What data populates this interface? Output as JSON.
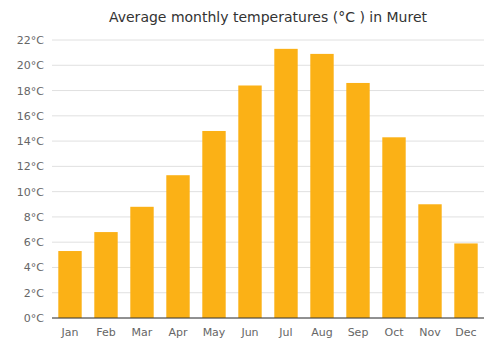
{
  "chart_data": {
    "type": "bar",
    "title": "Average monthly temperatures (°C ) in Muret",
    "categories": [
      "Jan",
      "Feb",
      "Mar",
      "Apr",
      "May",
      "Jun",
      "Jul",
      "Aug",
      "Sep",
      "Oct",
      "Nov",
      "Dec"
    ],
    "values": [
      5.3,
      6.8,
      8.8,
      11.3,
      14.8,
      18.4,
      21.3,
      20.9,
      18.6,
      14.3,
      9.0,
      5.9
    ],
    "color": "#FBB116",
    "ylim": [
      0,
      22
    ],
    "yticks": [
      {
        "value": 0,
        "label": "0°C"
      },
      {
        "value": 2,
        "label": "2°C"
      },
      {
        "value": 4,
        "label": "4°C"
      },
      {
        "value": 6,
        "label": "6°C"
      },
      {
        "value": 8,
        "label": "8°C"
      },
      {
        "value": 10,
        "label": "10°C"
      },
      {
        "value": 12,
        "label": "12°C"
      },
      {
        "value": 14,
        "label": "14°C"
      },
      {
        "value": 16,
        "label": "16°C"
      },
      {
        "value": 18,
        "label": "18°C"
      },
      {
        "value": 20,
        "label": "20°C"
      },
      {
        "value": 22,
        "label": "22°C"
      }
    ],
    "grid": true
  }
}
